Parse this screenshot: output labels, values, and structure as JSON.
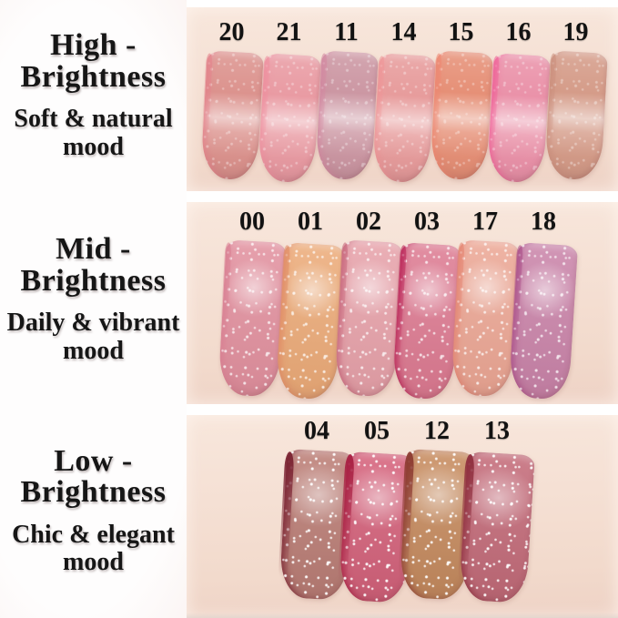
{
  "palette": {
    "page_bg": "#ffffff",
    "label_bg_center": "#fdfcfc",
    "label_bg_edge": "#efd7d3",
    "skin_top": "#f8e7dc",
    "skin_bottom": "#eed2c5",
    "text_color": "#161616",
    "number_color": "#121212"
  },
  "sections": [
    {
      "id": "high-brightness",
      "title_line1": "High -",
      "title_line2": "Brightness",
      "mood_line1": "Soft & natural",
      "mood_line2": "mood",
      "swatches": [
        {
          "number": "20",
          "color": "#dc938e",
          "rim": "#e4828b"
        },
        {
          "number": "21",
          "color": "#e99ba3",
          "rim": "#ef8f9f"
        },
        {
          "number": "11",
          "color": "#cc97a3",
          "rim": "#d387a0"
        },
        {
          "number": "14",
          "color": "#e79c9c",
          "rim": "#ef9597"
        },
        {
          "number": "15",
          "color": "#e69077",
          "rim": "#ee8771"
        },
        {
          "number": "16",
          "color": "#ea92a9",
          "rim": "#f05f97"
        },
        {
          "number": "19",
          "color": "#d59c89",
          "rim": "#cb8f7d"
        }
      ]
    },
    {
      "id": "mid-brightness",
      "title_line1": "Mid -",
      "title_line2": "Brightness",
      "mood_line1": "Daily & vibrant",
      "mood_line2": "mood",
      "swatches": [
        {
          "number": "00",
          "color": "#e2919f",
          "rim": "#d97f92"
        },
        {
          "number": "01",
          "color": "#ecab79",
          "rim": "#e08a64"
        },
        {
          "number": "02",
          "color": "#e7a2aa",
          "rim": "#c66379"
        },
        {
          "number": "03",
          "color": "#dd7b92",
          "rim": "#b81e53"
        },
        {
          "number": "17",
          "color": "#eca795",
          "rim": "#e4826f"
        },
        {
          "number": "18",
          "color": "#ca84a9",
          "rim": "#a94c87"
        }
      ]
    },
    {
      "id": "low-brightness",
      "title_line1": "Low -",
      "title_line2": "Brightness",
      "mood_line1": "Chic & elegant",
      "mood_line2": "mood",
      "swatches": [
        {
          "number": "04",
          "color": "#bd8078",
          "rim": "#7a2231"
        },
        {
          "number": "05",
          "color": "#d6647d",
          "rim": "#a81f42"
        },
        {
          "number": "12",
          "color": "#c88d61",
          "rim": "#8c3a31"
        },
        {
          "number": "13",
          "color": "#c56d7b",
          "rim": "#8f2f3e"
        }
      ]
    }
  ]
}
